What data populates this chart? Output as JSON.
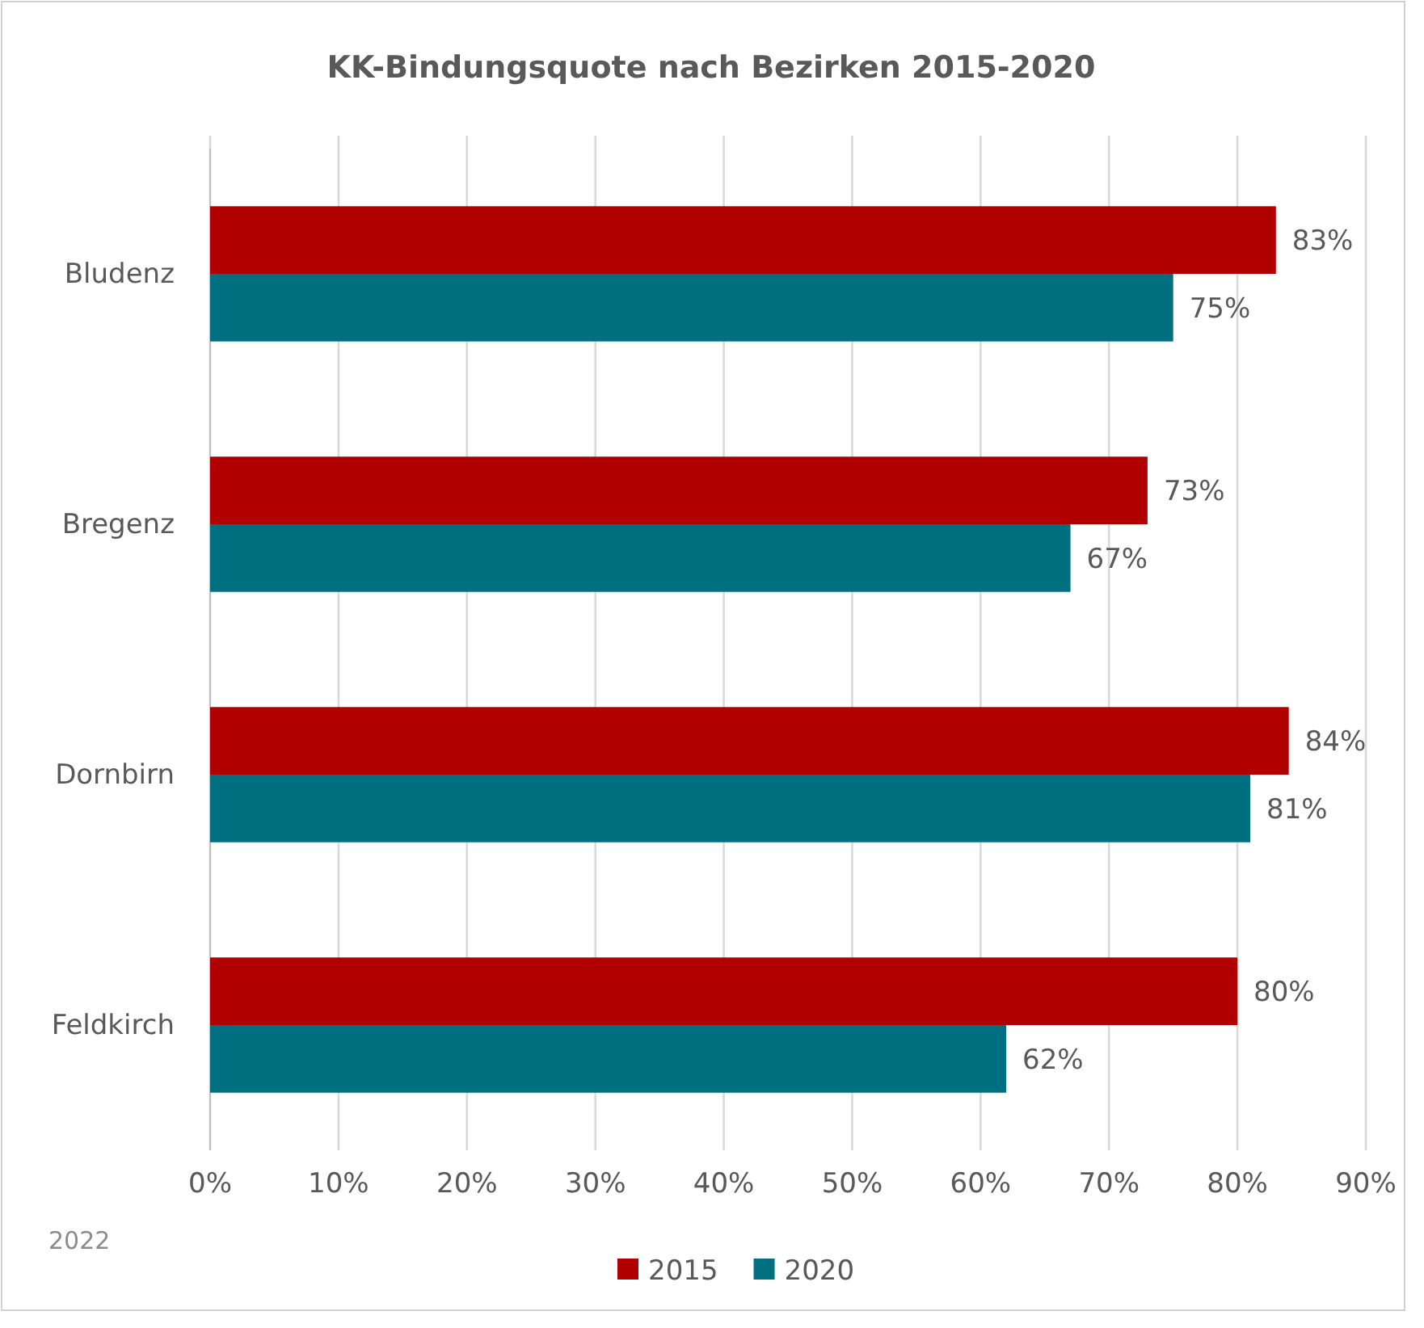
{
  "chart_data": {
    "type": "bar",
    "orientation": "horizontal",
    "title": "KK-Bindungsquote nach Bezirken 2015-2020",
    "categories": [
      "Bludenz",
      "Bregenz",
      "Dornbirn",
      "Feldkirch"
    ],
    "series": [
      {
        "name": "2015",
        "color": "#b00000",
        "values": [
          83,
          73,
          84,
          80
        ]
      },
      {
        "name": "2020",
        "color": "#007080",
        "values": [
          75,
          67,
          81,
          62
        ]
      }
    ],
    "xlim": [
      0,
      90
    ],
    "xticks": [
      {
        "value": 0,
        "label": "0%"
      },
      {
        "value": 10,
        "label": "10%"
      },
      {
        "value": 20,
        "label": "20%"
      },
      {
        "value": 30,
        "label": "30%"
      },
      {
        "value": 40,
        "label": "40%"
      },
      {
        "value": 50,
        "label": "50%"
      },
      {
        "value": 60,
        "label": "60%"
      },
      {
        "value": 70,
        "label": "70%"
      },
      {
        "value": 80,
        "label": "80%"
      },
      {
        "value": 90,
        "label": "90%"
      }
    ],
    "value_labels": [
      "83%",
      "73%",
      "84%",
      "80%",
      "75%",
      "67%",
      "81%",
      "62%"
    ],
    "grid": "x",
    "legend": "bottom",
    "annotations": [
      "2022"
    ]
  }
}
